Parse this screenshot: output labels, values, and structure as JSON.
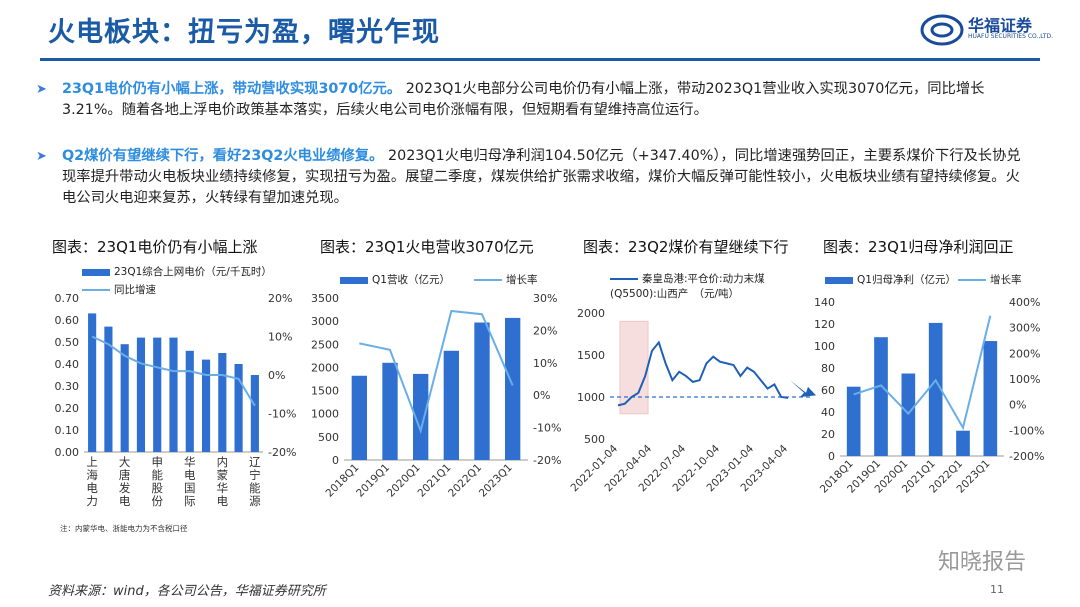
{
  "header": {
    "title": "火电板块：扭亏为盈，曙光乍现",
    "logo_text": "华福证券",
    "logo_sub": "HUAFU SECURITIES CO.,LTD."
  },
  "bullets": [
    {
      "head": "23Q1电价仍有小幅上涨，带动营收实现3070亿元。",
      "body": "2023Q1火电部分公司电价仍有小幅上涨，带动2023Q1营业收入实现3070亿元，同比增长3.21%。随着各地上浮电价政策基本落实，后续火电公司电价涨幅有限，但短期看有望维持高位运行。"
    },
    {
      "head": "Q2煤价有望继续下行，看好23Q2火电业绩修复。",
      "body": "2023Q1火电归母净利润104.50亿元（+347.40%），同比增速强势回正，主要系煤价下行及长协兑现率提升带动火电板块业绩持续修复，实现扭亏为盈。展望二季度，煤炭供给扩张需求收缩，煤价大幅反弹可能性较小，火电板块业绩有望持续修复。火电公司火电迎来复苏，火转绿有望加速兑现。"
    }
  ],
  "footer": {
    "note": "注：内蒙华电、浙能电力为不含税口径",
    "source": "资料来源：wind，各公司公告，华福证券研究所",
    "page": "11",
    "watermark": "知晓报告"
  },
  "chart_data": [
    {
      "type": "bar",
      "title": "图表：23Q1电价仍有小幅上涨",
      "categories": [
        "上海电力",
        "",
        "大唐发电",
        "",
        "申能股份",
        "",
        "华电国际",
        "",
        "内蒙华电",
        "",
        "辽宁能源"
      ],
      "tick_labels": [
        "上海电力",
        "大唐发电",
        "申能股份",
        "华电国际",
        "内蒙华电",
        "辽宁能源"
      ],
      "series": [
        {
          "name": "23Q1综合上网电价（元/千瓦时）",
          "type": "bar",
          "axis": "left",
          "values": [
            0.63,
            0.57,
            0.49,
            0.52,
            0.52,
            0.52,
            0.46,
            0.42,
            0.45,
            0.4,
            0.35
          ]
        },
        {
          "name": "同比增速",
          "type": "line",
          "axis": "right",
          "values": [
            10,
            8,
            5,
            3,
            2,
            1,
            1,
            0,
            0,
            -1,
            -8
          ]
        }
      ],
      "ylim_left": [
        0,
        0.7
      ],
      "yticks_left": [
        "0.00",
        "0.10",
        "0.20",
        "0.30",
        "0.40",
        "0.50",
        "0.60",
        "0.70"
      ],
      "ylim_right": [
        -20,
        20
      ],
      "yticks_right": [
        "-20%",
        "-10%",
        "0%",
        "10%",
        "20%"
      ]
    },
    {
      "type": "bar",
      "title": "图表：23Q1火电营收3070亿元",
      "categories": [
        "2018Q1",
        "2019Q1",
        "2020Q1",
        "2021Q1",
        "2022Q1",
        "2023Q1"
      ],
      "series": [
        {
          "name": "Q1营收（亿元）",
          "type": "bar",
          "axis": "left",
          "values": [
            1820,
            2100,
            1860,
            2360,
            2970,
            3070
          ]
        },
        {
          "name": "增长率",
          "type": "line",
          "axis": "right",
          "values": [
            16,
            14,
            -11,
            26,
            25,
            3
          ]
        }
      ],
      "ylim_left": [
        0,
        3500
      ],
      "yticks_left": [
        "0",
        "500",
        "1000",
        "1500",
        "2000",
        "2500",
        "3000",
        "3500"
      ],
      "ylim_right": [
        -20,
        30
      ],
      "yticks_right": [
        "-20%",
        "-10%",
        "0%",
        "10%",
        "20%",
        "30%"
      ]
    },
    {
      "type": "line",
      "title": "图表：23Q2煤价有望继续下行",
      "series": [
        {
          "name": "秦皇岛港:平仓价:动力末煤(Q5500):山西产　（元/吨）",
          "values": [
            900,
            920,
            1000,
            1050,
            1250,
            1550,
            1650,
            1400,
            1200,
            1300,
            1250,
            1180,
            1200,
            1400,
            1480,
            1420,
            1400,
            1380,
            1250,
            1350,
            1300,
            1200,
            1100,
            1150,
            1000,
            990
          ]
        },
        {
          "name": "reference",
          "values": [
            1000,
            1000
          ]
        }
      ],
      "x_ticks": [
        "2022-01-04",
        "2022-04-04",
        "2022-07-04",
        "2022-10-04",
        "2023-01-04",
        "2023-04-04"
      ],
      "ylim": [
        500,
        2000
      ],
      "yticks": [
        "500",
        "1000",
        "1500",
        "2000"
      ]
    },
    {
      "type": "bar",
      "title": "图表：23Q1归母净利润回正",
      "categories": [
        "2018Q1",
        "2019Q1",
        "2020Q1",
        "2021Q1",
        "2022Q1",
        "2023Q1"
      ],
      "series": [
        {
          "name": "Q1归母净利（亿元）",
          "type": "bar",
          "axis": "left",
          "values": [
            63,
            108,
            75,
            121,
            23,
            104.5
          ]
        },
        {
          "name": "增长率",
          "type": "line",
          "axis": "right",
          "values": [
            40,
            75,
            -35,
            95,
            -90,
            347
          ]
        }
      ],
      "ylim_left": [
        0,
        140
      ],
      "yticks_left": [
        "0",
        "20",
        "40",
        "60",
        "80",
        "100",
        "120",
        "140"
      ],
      "ylim_right": [
        -200,
        400
      ],
      "yticks_right": [
        "-200%",
        "-100%",
        "0%",
        "100%",
        "200%",
        "300%",
        "400%"
      ]
    }
  ],
  "colors": {
    "bar": "#2f6fd0",
    "line": "#6aaee8",
    "coal": "#1e5fb8",
    "title": "#1a5aa6",
    "accent": "#2f8de0"
  }
}
